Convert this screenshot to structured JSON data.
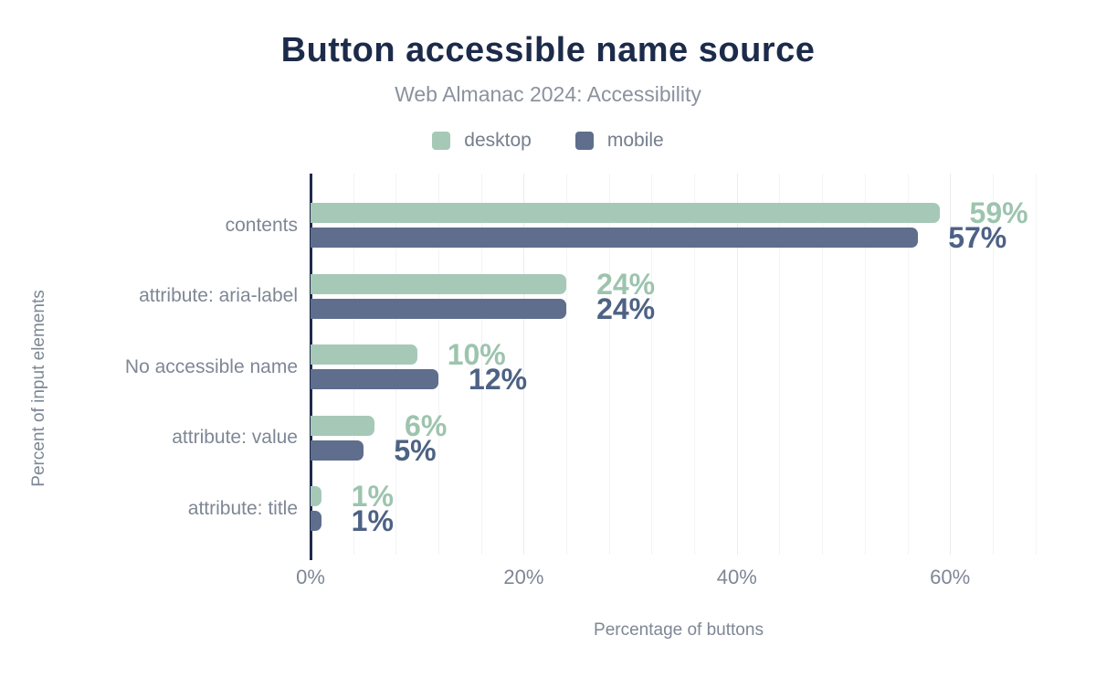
{
  "chart_data": {
    "type": "bar",
    "orientation": "horizontal",
    "title": "Button accessible name source",
    "subtitle": "Web Almanac 2024: Accessibility",
    "categories": [
      "contents",
      "attribute: aria-label",
      "No accessible name",
      "attribute: value",
      "attribute: title"
    ],
    "series": [
      {
        "name": "desktop",
        "values": [
          59,
          24,
          10,
          6,
          1
        ],
        "bar_color": "#a6c9b7",
        "label_color": "#9dc4ae"
      },
      {
        "name": "mobile",
        "values": [
          57,
          24,
          12,
          5,
          1
        ],
        "bar_color": "#5e6e8c",
        "label_color": "#4d6284"
      }
    ],
    "value_suffix": "%",
    "xlabel": "Percentage of buttons",
    "ylabel": "Percent of input elements",
    "x_ticks": [
      {
        "value": 0,
        "label": "0%"
      },
      {
        "value": 20,
        "label": "20%"
      },
      {
        "value": 40,
        "label": "40%"
      },
      {
        "value": 60,
        "label": "60%"
      }
    ],
    "xlim": [
      0,
      69
    ],
    "grid_step_pct": 4,
    "legend_position": "top",
    "grid": "vertical-light"
  },
  "colors": {
    "title": "#1c2b4a",
    "subtitle": "#8b929e",
    "axis_line": "#1c2b4a",
    "axis_text": "#7e8795",
    "gridline_minor": "#f2f4f5",
    "gridline_major": "#e9ecee",
    "background": "#ffffff"
  }
}
